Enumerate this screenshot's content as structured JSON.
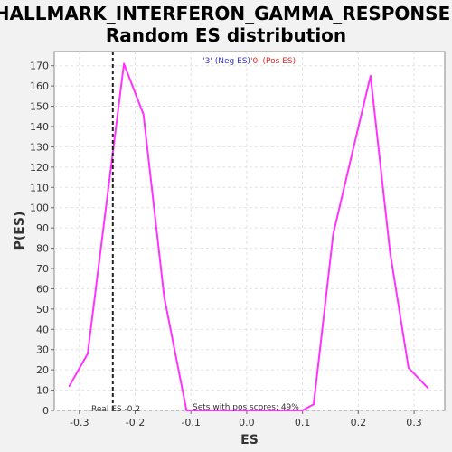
{
  "chart_data": {
    "type": "line",
    "title": "HALLMARK_INTERFERON_GAMMA_RESPONSE:",
    "subtitle": "Random ES distribution",
    "xlabel": "ES",
    "ylabel": "P(ES)",
    "xlim": [
      -0.345,
      0.355
    ],
    "ylim": [
      0,
      177
    ],
    "x_ticks": [
      -0.3,
      -0.2,
      -0.1,
      0.0,
      0.1,
      0.2,
      0.3
    ],
    "x_tick_labels": [
      "-0.3",
      "-0.2",
      "-0.1",
      "0.0",
      "0.1",
      "0.2",
      "0.3"
    ],
    "y_ticks": [
      0,
      10,
      20,
      30,
      40,
      50,
      60,
      70,
      80,
      90,
      100,
      110,
      120,
      130,
      140,
      150,
      160,
      170
    ],
    "y_tick_labels": [
      "0",
      "10",
      "20",
      "30",
      "40",
      "50",
      "60",
      "70",
      "80",
      "90",
      "100",
      "110",
      "120",
      "130",
      "140",
      "150",
      "160",
      "170"
    ],
    "grid": true,
    "series": [
      {
        "color": "#ff33ff",
        "points": [
          [
            -0.318,
            12
          ],
          [
            -0.285,
            28
          ],
          [
            -0.22,
            171
          ],
          [
            -0.185,
            146
          ],
          [
            -0.148,
            56
          ],
          [
            -0.108,
            0
          ],
          [
            -0.09,
            0
          ],
          [
            0.0,
            0
          ],
          [
            0.1,
            0
          ],
          [
            0.12,
            3
          ],
          [
            0.155,
            87
          ],
          [
            0.19,
            128
          ],
          [
            0.222,
            165
          ],
          [
            0.257,
            78
          ],
          [
            0.29,
            21
          ],
          [
            0.325,
            11
          ]
        ]
      }
    ],
    "real_es": {
      "value": -0.24,
      "label": "Real ES -0.2"
    },
    "annotation": "Sets with pos scores: 49%",
    "legend": {
      "position": "top-center",
      "neg_label": "'3' (Neg ES)",
      "pos_label": "'0' (Pos ES)",
      "neg_color": "#3333cc",
      "pos_color": "#ee2222"
    }
  }
}
